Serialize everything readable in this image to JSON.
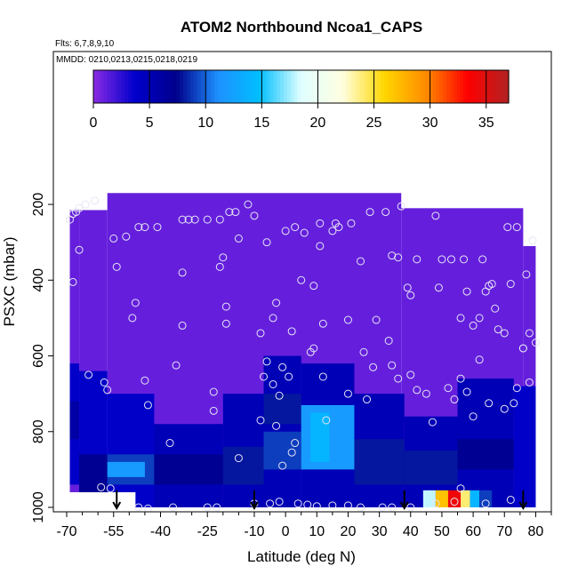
{
  "chart_data": {
    "type": "heatmap",
    "title": "ATOM2 Northbound Ncoa1_CAPS",
    "subtitle_flights": "Flts: 6,7,8,9,10",
    "subtitle_dates": "MMDD: 0210,0213,0215,0218,0219",
    "xlabel": "Latitude (deg N)",
    "ylabel": "PSXC (mbar)",
    "xlim": [
      -70,
      85
    ],
    "ylim": [
      1000,
      0
    ],
    "x_ticks": [
      -70,
      -55,
      -40,
      -25,
      -10,
      0,
      10,
      20,
      30,
      40,
      50,
      60,
      70,
      80
    ],
    "x_tick_labels": [
      "-70",
      "-55",
      "-40",
      "-25",
      "-10",
      "0",
      "10",
      "20",
      "30",
      "40",
      "50",
      "60",
      "70",
      "80"
    ],
    "y_ticks": [
      200,
      400,
      600,
      800,
      1000
    ],
    "y_tick_labels": [
      "200",
      "400",
      "600",
      "800",
      "1000"
    ],
    "colorbar": {
      "min": 0,
      "max": 37,
      "ticks": [
        0,
        5,
        10,
        15,
        20,
        25,
        30,
        35
      ],
      "tick_labels": [
        "0",
        "5",
        "10",
        "15",
        "20",
        "25",
        "30",
        "35"
      ],
      "colors": [
        "#8a2be2",
        "#0000cd",
        "#00008b",
        "#1e90ff",
        "#00bfff",
        "#e0ffff",
        "#ffffe0",
        "#ffd700",
        "#ff8c00",
        "#ff0000",
        "#b22222"
      ]
    },
    "background_value": 1,
    "cell_dx": 1.5,
    "cell_dy": 20,
    "regions": [
      {
        "x": [
          -69,
          -66
        ],
        "y": [
          215,
          1000
        ],
        "value": 1
      },
      {
        "x": [
          -66,
          -57
        ],
        "y": [
          215,
          1000
        ],
        "value": 1
      },
      {
        "x": [
          -57,
          37
        ],
        "y": [
          170,
          1000
        ],
        "value": 1
      },
      {
        "x": [
          37,
          76
        ],
        "y": [
          210,
          1000
        ],
        "value": 1
      },
      {
        "x": [
          76,
          80
        ],
        "y": [
          310,
          1000
        ],
        "value": 1
      },
      {
        "x": [
          -69,
          -66
        ],
        "y": [
          620,
          940
        ],
        "value": 4
      },
      {
        "x": [
          -69,
          -66
        ],
        "y": [
          720,
          820
        ],
        "value": 6
      },
      {
        "x": [
          -66,
          -57
        ],
        "y": [
          640,
          960
        ],
        "value": 4
      },
      {
        "x": [
          -66,
          -57
        ],
        "y": [
          860,
          960
        ],
        "value": 7
      },
      {
        "x": [
          -57,
          -42
        ],
        "y": [
          700,
          1000
        ],
        "value": 4
      },
      {
        "x": [
          -57,
          -42
        ],
        "y": [
          860,
          940
        ],
        "value": 9
      },
      {
        "x": [
          -57,
          -45
        ],
        "y": [
          880,
          920
        ],
        "value": 12
      },
      {
        "x": [
          -42,
          -20
        ],
        "y": [
          780,
          1000
        ],
        "value": 5
      },
      {
        "x": [
          -42,
          -20
        ],
        "y": [
          860,
          940
        ],
        "value": 7
      },
      {
        "x": [
          -20,
          -7
        ],
        "y": [
          700,
          1000
        ],
        "value": 5
      },
      {
        "x": [
          -20,
          -7
        ],
        "y": [
          840,
          940
        ],
        "value": 8
      },
      {
        "x": [
          -7,
          5
        ],
        "y": [
          600,
          1000
        ],
        "value": 5
      },
      {
        "x": [
          -7,
          5
        ],
        "y": [
          700,
          780
        ],
        "value": 8
      },
      {
        "x": [
          -7,
          5
        ],
        "y": [
          800,
          900
        ],
        "value": 9
      },
      {
        "x": [
          5,
          22
        ],
        "y": [
          620,
          1000
        ],
        "value": 5
      },
      {
        "x": [
          5,
          22
        ],
        "y": [
          730,
          900
        ],
        "value": 12
      },
      {
        "x": [
          8,
          14
        ],
        "y": [
          750,
          880
        ],
        "value": 14
      },
      {
        "x": [
          22,
          38
        ],
        "y": [
          700,
          1000
        ],
        "value": 5
      },
      {
        "x": [
          22,
          38
        ],
        "y": [
          820,
          940
        ],
        "value": 8
      },
      {
        "x": [
          38,
          55
        ],
        "y": [
          760,
          1000
        ],
        "value": 5
      },
      {
        "x": [
          38,
          55
        ],
        "y": [
          850,
          940
        ],
        "value": 8
      },
      {
        "x": [
          55,
          73
        ],
        "y": [
          660,
          1000
        ],
        "value": 5
      },
      {
        "x": [
          55,
          73
        ],
        "y": [
          820,
          900
        ],
        "value": 7
      },
      {
        "x": [
          73,
          80
        ],
        "y": [
          680,
          1000
        ],
        "value": 4
      },
      {
        "x": [
          44,
          48
        ],
        "y": [
          955,
          1000
        ],
        "value": 18
      },
      {
        "x": [
          48,
          52
        ],
        "y": [
          955,
          1000
        ],
        "value": 27
      },
      {
        "x": [
          52,
          56
        ],
        "y": [
          955,
          1000
        ],
        "value": 34
      },
      {
        "x": [
          56,
          59
        ],
        "y": [
          955,
          1000
        ],
        "value": 24
      },
      {
        "x": [
          59,
          62
        ],
        "y": [
          955,
          1000
        ],
        "value": 14
      },
      {
        "x": [
          62,
          66
        ],
        "y": [
          955,
          1000
        ],
        "value": 9
      }
    ],
    "blank_regions": [
      {
        "x": [
          -69,
          -48
        ],
        "y": [
          960,
          1000
        ]
      }
    ],
    "points": [
      [
        -69,
        240
      ],
      [
        -68,
        225
      ],
      [
        -67,
        220
      ],
      [
        -66,
        210
      ],
      [
        -64,
        200
      ],
      [
        -61,
        190
      ],
      [
        -68,
        405
      ],
      [
        -66,
        320
      ],
      [
        -55,
        290
      ],
      [
        -51,
        285
      ],
      [
        -54,
        365
      ],
      [
        -47,
        260
      ],
      [
        -45,
        260
      ],
      [
        -41,
        260
      ],
      [
        -49,
        500
      ],
      [
        -48,
        460
      ],
      [
        -35,
        625
      ],
      [
        -33,
        520
      ],
      [
        -33,
        380
      ],
      [
        -33,
        240
      ],
      [
        -31,
        240
      ],
      [
        -29,
        240
      ],
      [
        -25,
        240
      ],
      [
        -21,
        240
      ],
      [
        -18,
        220
      ],
      [
        -16,
        220
      ],
      [
        -12,
        200
      ],
      [
        -21,
        365
      ],
      [
        -19,
        470
      ],
      [
        -19,
        515
      ],
      [
        -20,
        340
      ],
      [
        -15,
        290
      ],
      [
        -10,
        230
      ],
      [
        -8,
        540
      ],
      [
        -6,
        300
      ],
      [
        -4,
        500
      ],
      [
        -3,
        460
      ],
      [
        0,
        270
      ],
      [
        2,
        535
      ],
      [
        3,
        260
      ],
      [
        5,
        400
      ],
      [
        6,
        275
      ],
      [
        9,
        415
      ],
      [
        9,
        580
      ],
      [
        11,
        310
      ],
      [
        11,
        250
      ],
      [
        12,
        515
      ],
      [
        15,
        270
      ],
      [
        16,
        250
      ],
      [
        17,
        260
      ],
      [
        20,
        505
      ],
      [
        21,
        250
      ],
      [
        25,
        590
      ],
      [
        24,
        350
      ],
      [
        27,
        220
      ],
      [
        29,
        505
      ],
      [
        32,
        220
      ],
      [
        34,
        335
      ],
      [
        36,
        340
      ],
      [
        37,
        205
      ],
      [
        39,
        420
      ],
      [
        40,
        440
      ],
      [
        42,
        345
      ],
      [
        48,
        230
      ],
      [
        49,
        420
      ],
      [
        50,
        345
      ],
      [
        53,
        345
      ],
      [
        56,
        500
      ],
      [
        57,
        345
      ],
      [
        58,
        430
      ],
      [
        60,
        520
      ],
      [
        62,
        500
      ],
      [
        63,
        345
      ],
      [
        64,
        430
      ],
      [
        65,
        415
      ],
      [
        66,
        410
      ],
      [
        67,
        475
      ],
      [
        68,
        530
      ],
      [
        70,
        540
      ],
      [
        71,
        260
      ],
      [
        72,
        410
      ],
      [
        74,
        260
      ],
      [
        76,
        580
      ],
      [
        77,
        385
      ],
      [
        78,
        540
      ],
      [
        79,
        295
      ],
      [
        80,
        565
      ],
      [
        -58,
        670
      ],
      [
        -57,
        690
      ],
      [
        -63,
        650
      ],
      [
        -45,
        665
      ],
      [
        -44,
        730
      ],
      [
        -23,
        695
      ],
      [
        -23,
        745
      ],
      [
        -15,
        870
      ],
      [
        -6,
        615
      ],
      [
        -7,
        655
      ],
      [
        -4,
        675
      ],
      [
        -1,
        630
      ],
      [
        -2,
        705
      ],
      [
        1,
        655
      ],
      [
        -8,
        770
      ],
      [
        -3,
        785
      ],
      [
        -1,
        890
      ],
      [
        2,
        855
      ],
      [
        3,
        830
      ],
      [
        8,
        590
      ],
      [
        12,
        655
      ],
      [
        13,
        770
      ],
      [
        20,
        700
      ],
      [
        26,
        715
      ],
      [
        28,
        630
      ],
      [
        33,
        560
      ],
      [
        34,
        625
      ],
      [
        36,
        660
      ],
      [
        40,
        650
      ],
      [
        42,
        690
      ],
      [
        45,
        700
      ],
      [
        47,
        775
      ],
      [
        52,
        685
      ],
      [
        54,
        715
      ],
      [
        56,
        660
      ],
      [
        58,
        695
      ],
      [
        60,
        760
      ],
      [
        62,
        610
      ],
      [
        65,
        725
      ],
      [
        70,
        740
      ],
      [
        73,
        725
      ],
      [
        74,
        685
      ],
      [
        76,
        580
      ],
      [
        78,
        670
      ],
      [
        -59,
        947
      ],
      [
        -56,
        950
      ],
      [
        -37,
        830
      ],
      [
        -36,
        1000
      ],
      [
        -25,
        1000
      ],
      [
        -22,
        1000
      ],
      [
        -10,
        990
      ],
      [
        -5,
        990
      ],
      [
        -2,
        985
      ],
      [
        4,
        990
      ],
      [
        7,
        993
      ],
      [
        10,
        997
      ],
      [
        15,
        995
      ],
      [
        20,
        995
      ],
      [
        24,
        1000
      ],
      [
        31,
        1000
      ],
      [
        34,
        1000
      ],
      [
        40,
        1000
      ],
      [
        48,
        990
      ],
      [
        54,
        985
      ],
      [
        56,
        950
      ],
      [
        64,
        990
      ],
      [
        72,
        980
      ],
      [
        -47,
        1000
      ],
      [
        -44,
        1003
      ]
    ],
    "arrows_x": [
      -54,
      -10,
      38,
      76
    ]
  }
}
